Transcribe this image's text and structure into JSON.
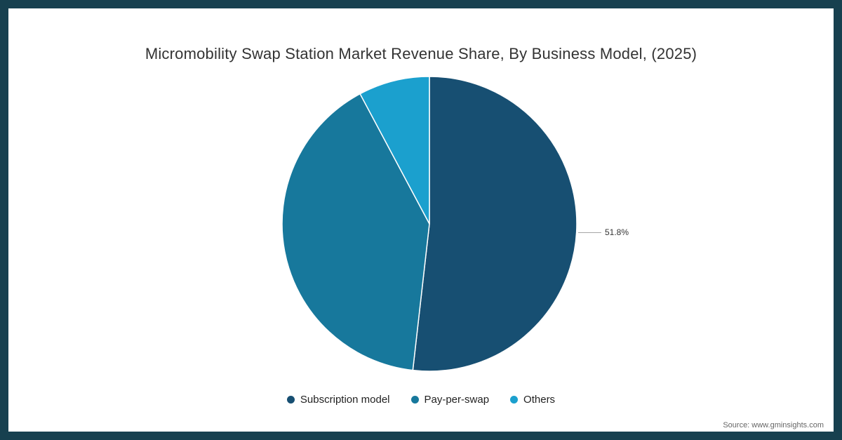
{
  "chart_data": {
    "type": "pie",
    "title": "Micromobility Swap Station Market Revenue Share, By Business Model, (2025)",
    "series": [
      {
        "name": "Subscription model",
        "value": 51.8,
        "color": "#174f72"
      },
      {
        "name": "Pay-per-swap",
        "value": 40.4,
        "color": "#17789c"
      },
      {
        "name": "Others",
        "value": 7.8,
        "color": "#1ba0ce"
      }
    ],
    "start_angle_deg": 0,
    "direction": "clockwise",
    "legend_position": "bottom",
    "callout": {
      "slice": "Subscription model",
      "label": "51.8%"
    }
  },
  "source": {
    "text": "Source: www.gminsights.com"
  },
  "frame_color": "#17404f"
}
